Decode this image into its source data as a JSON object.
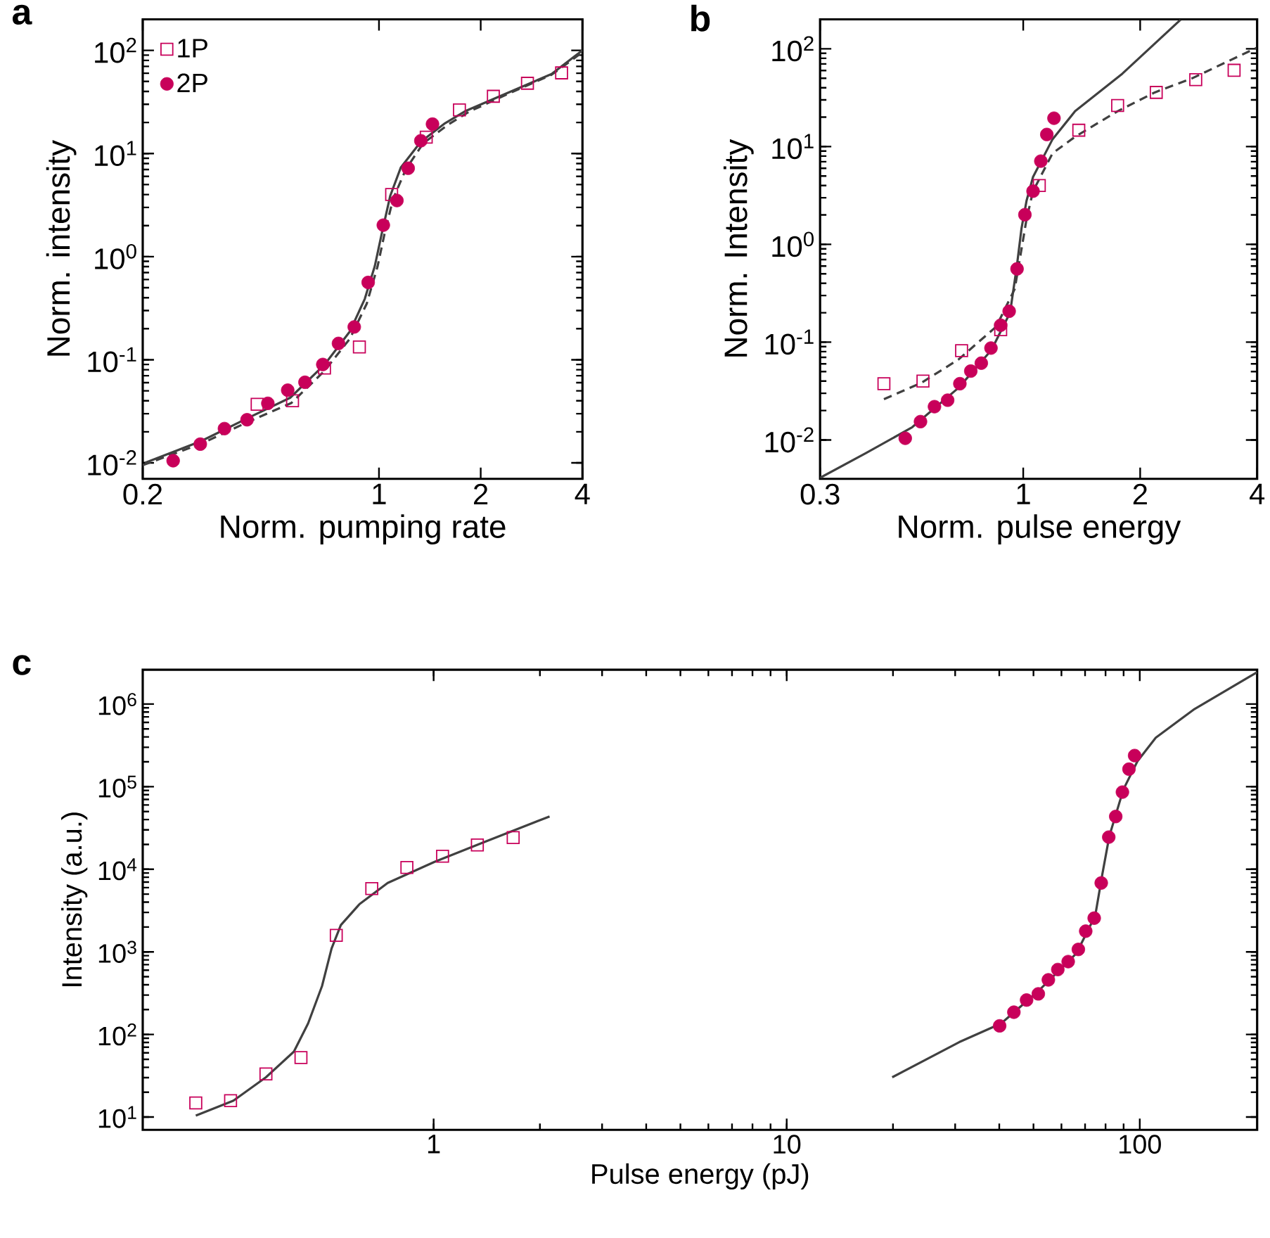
{
  "chart_data": [
    {
      "type": "scatter",
      "title": "a",
      "xlabel": "Norm. pumping rate",
      "ylabel": "Norm. intensity",
      "log": "xy",
      "legend": "top left",
      "xlim": [
        0.2,
        4
      ],
      "ylim": [
        0.007,
        200
      ],
      "xticks": [
        0.2,
        1,
        2,
        4
      ],
      "yticks": [
        {
          "value": 0.01,
          "label": "10$^{-2}$"
        },
        {
          "value": 0.1,
          "label": "10$^{-1}$"
        },
        {
          "value": 1,
          "label": "10$^{0}$"
        },
        {
          "value": 10,
          "label": "10$^{1}$"
        },
        {
          "value": 100,
          "label": "10$^{2}$"
        }
      ],
      "series": [
        {
          "type": "line",
          "line_style": "solid",
          "color": "#404040",
          "x": [
            0.203,
            0.298,
            0.411,
            0.546,
            0.69,
            0.82,
            0.908,
            0.972,
            1.02,
            1.08,
            1.16,
            1.33,
            1.57,
            1.81,
            2.5,
            3.24,
            4
          ],
          "values": [
            0.01,
            0.0163,
            0.0274,
            0.0428,
            0.0896,
            0.188,
            0.39,
            0.81,
            1.7,
            3.9,
            7.3,
            13.0,
            19.7,
            26,
            41,
            59,
            100
          ]
        },
        {
          "type": "line",
          "line_style": "dashed",
          "color": "#404040",
          "x": [
            0.2,
            0.3,
            0.41,
            0.55,
            0.69,
            0.82,
            0.92,
            0.99,
            1.04,
            1.1,
            1.2,
            1.35,
            1.6,
            1.85,
            2.5,
            3.24,
            4
          ],
          "values": [
            0.0095,
            0.0155,
            0.025,
            0.038,
            0.078,
            0.16,
            0.35,
            0.8,
            1.7,
            3.6,
            7,
            12.5,
            19,
            25.5,
            40,
            58,
            96
          ]
        },
        {
          "name": "1P",
          "marker": "square",
          "color": "#c8005a",
          "x": [
            0.436,
            0.555,
            0.69,
            0.875,
            1.09,
            1.38,
            1.73,
            2.18,
            2.75,
            3.47
          ],
          "values": [
            0.037,
            0.04,
            0.083,
            0.133,
            4.0,
            14.4,
            26.5,
            35.9,
            48,
            60.5
          ]
        },
        {
          "name": "2P",
          "marker": "circle",
          "color": "#c8005a",
          "x": [
            0.246,
            0.296,
            0.349,
            0.407,
            0.469,
            0.537,
            0.604,
            0.682,
            0.759,
            0.845,
            0.929,
            1.03,
            1.13,
            1.22,
            1.33,
            1.44
          ],
          "values": [
            0.0105,
            0.0152,
            0.0215,
            0.0262,
            0.0378,
            0.0507,
            0.0605,
            0.09,
            0.144,
            0.208,
            0.562,
            2.02,
            3.5,
            7.2,
            13.3,
            19.3
          ]
        }
      ]
    },
    {
      "type": "scatter",
      "title": "b",
      "xlabel": "Norm. pulse energy",
      "ylabel": "Norm. Intensity",
      "log": "xy",
      "xlim": [
        0.3,
        4
      ],
      "ylim": [
        0.004,
        200
      ],
      "xticks": [
        0.3,
        1,
        2,
        4
      ],
      "yticks": [
        {
          "value": 0.01,
          "label": "10$^{-2}$"
        },
        {
          "value": 0.1,
          "label": "10$^{-1}$"
        },
        {
          "value": 1,
          "label": "10$^{0}$"
        },
        {
          "value": 10,
          "label": "10$^{1}$"
        },
        {
          "value": 100,
          "label": "10$^{2}$"
        }
      ],
      "series": [
        {
          "type": "line",
          "line_style": "solid",
          "color": "#404040",
          "x": [
            0.3,
            0.393,
            0.518,
            0.683,
            0.828,
            0.925,
            0.963,
            0.99,
            1.02,
            1.06,
            1.19,
            1.36,
            1.8,
            2.54
          ],
          "values": [
            0.0041,
            0.0073,
            0.0135,
            0.0344,
            0.083,
            0.2,
            0.6,
            1.46,
            2.8,
            4.9,
            11.9,
            23,
            55.7,
            198
          ]
        },
        {
          "type": "line",
          "line_style": "dashed",
          "color": "#404040",
          "x": [
            0.438,
            0.547,
            0.682,
            0.852,
            0.951,
            0.992,
            1.02,
            1.06,
            1.19,
            1.36,
            1.75,
            2.18,
            2.72,
            3.98
          ],
          "values": [
            0.0261,
            0.0384,
            0.0667,
            0.144,
            0.35,
            0.94,
            1.82,
            3.5,
            8.55,
            12.6,
            23,
            35.8,
            49.9,
            102
          ]
        },
        {
          "marker": "square",
          "color": "#c8005a",
          "x": [
            0.438,
            0.552,
            0.694,
            0.875,
            1.1,
            1.39,
            1.75,
            2.2,
            2.78,
            3.49
          ],
          "values": [
            0.0376,
            0.04,
            0.082,
            0.134,
            4.0,
            14.7,
            26.3,
            35.8,
            48.3,
            60.3
          ]
        },
        {
          "marker": "circle",
          "color": "#c8005a",
          "x": [
            0.497,
            0.544,
            0.591,
            0.639,
            0.687,
            0.733,
            0.78,
            0.826,
            0.875,
            0.92,
            0.964,
            1.01,
            1.06,
            1.11,
            1.15,
            1.2
          ],
          "values": [
            0.0104,
            0.0154,
            0.0219,
            0.0255,
            0.0376,
            0.0506,
            0.061,
            0.087,
            0.149,
            0.207,
            0.561,
            2.01,
            3.5,
            7.1,
            13.3,
            19.5
          ]
        }
      ]
    },
    {
      "type": "scatter",
      "title": "c",
      "xlabel": "Pulse energy (pJ)",
      "ylabel": "Intensity (a.u.)",
      "log": "xy",
      "xlim": [
        0.15,
        215
      ],
      "ylim": [
        7,
        2600000
      ],
      "xticks": [
        1,
        10,
        100
      ],
      "yticks": [
        {
          "value": 10,
          "label": "10$^{1}$"
        },
        {
          "value": 100,
          "label": "10$^{2}$"
        },
        {
          "value": 1000,
          "label": "10$^{3}$"
        },
        {
          "value": 10000,
          "label": "10$^{4}$"
        },
        {
          "value": 100000,
          "label": "10$^{5}$"
        },
        {
          "value": 1000000,
          "label": "10$^{6}$"
        }
      ],
      "series": [
        {
          "type": "line",
          "line_style": "solid",
          "color": "#404040",
          "x": [
            0.212,
            0.271,
            0.335,
            0.402,
            0.441,
            0.483,
            0.514,
            0.546,
            0.617,
            0.741,
            1.006,
            1.365,
            2.13
          ],
          "values": [
            10.4,
            15.8,
            30.3,
            62,
            136,
            386,
            1100,
            2110,
            3790,
            6820,
            12300,
            20700,
            43600
          ]
        },
        {
          "type": "line",
          "line_style": "solid",
          "color": "#404040",
          "x": [
            19.9,
            30.8,
            40.5,
            51.8,
            66.2,
            74.8,
            78.4,
            82,
            89.9,
            98.5,
            111,
            142,
            215
          ],
          "values": [
            30.3,
            80.7,
            136,
            340,
            964,
            2740,
            8870,
            25200,
            92900,
            203000,
            391000,
            855000,
            2430000
          ]
        },
        {
          "marker": "square",
          "color": "#c8005a",
          "x": [
            0.212,
            0.266,
            0.335,
            0.421,
            0.53,
            0.668,
            0.84,
            1.06,
            1.33,
            1.68
          ],
          "values": [
            14.8,
            15.8,
            33.3,
            52.5,
            1585,
            5830,
            10500,
            14400,
            19700,
            24200
          ]
        },
        {
          "marker": "circle",
          "color": "#c8005a",
          "x": [
            40.1,
            44.0,
            47.8,
            51.6,
            55.1,
            58.6,
            62.7,
            67.0,
            70.3,
            74.3,
            77.8,
            81.7,
            85.5,
            89.3,
            93.2,
            96.7
          ],
          "values": [
            127,
            186,
            261,
            310,
            458,
            611,
            762,
            1070,
            1780,
            2560,
            6820,
            24500,
            43500,
            85900,
            163000,
            238000
          ]
        }
      ]
    }
  ]
}
